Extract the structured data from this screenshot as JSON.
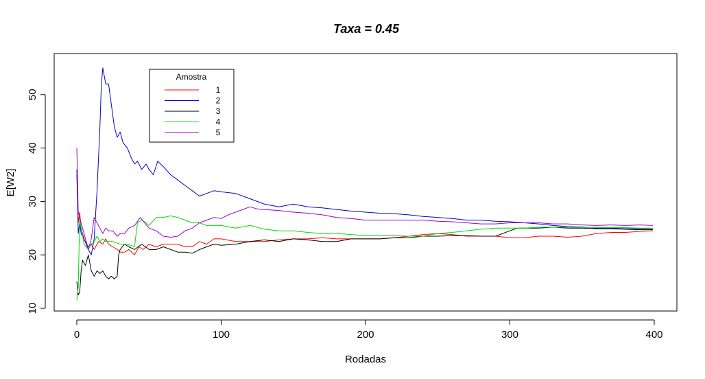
{
  "chart_data": {
    "type": "line",
    "title": "Taxa = 0.45",
    "xlabel": "Rodadas",
    "ylabel": "E[W2]",
    "xlim": [
      0,
      400
    ],
    "ylim": [
      10,
      56
    ],
    "xticks": [
      0,
      100,
      200,
      300,
      400
    ],
    "yticks": [
      10,
      20,
      30,
      40,
      50
    ],
    "grid": false,
    "legend": {
      "title": "Amostra",
      "position": "top-left",
      "entries": [
        "1",
        "2",
        "3",
        "4",
        "5"
      ]
    },
    "series": [
      {
        "name": "1",
        "color": "#FF0000",
        "points": [
          [
            0,
            35
          ],
          [
            1,
            26
          ],
          [
            2,
            28
          ],
          [
            3,
            25
          ],
          [
            5,
            23
          ],
          [
            8,
            21.5
          ],
          [
            10,
            22
          ],
          [
            12,
            21
          ],
          [
            15,
            22.5
          ],
          [
            18,
            22
          ],
          [
            20,
            23
          ],
          [
            22,
            22
          ],
          [
            25,
            21.5
          ],
          [
            28,
            21
          ],
          [
            30,
            20.5
          ],
          [
            33,
            20.5
          ],
          [
            36,
            21
          ],
          [
            40,
            20
          ],
          [
            43,
            21.5
          ],
          [
            46,
            21
          ],
          [
            50,
            22
          ],
          [
            55,
            21.5
          ],
          [
            60,
            22
          ],
          [
            65,
            22
          ],
          [
            70,
            22
          ],
          [
            75,
            21.5
          ],
          [
            80,
            21.5
          ],
          [
            85,
            22.5
          ],
          [
            90,
            22
          ],
          [
            95,
            23
          ],
          [
            100,
            23
          ],
          [
            110,
            22.5
          ],
          [
            120,
            22.5
          ],
          [
            130,
            22.5
          ],
          [
            140,
            22.8
          ],
          [
            150,
            23
          ],
          [
            160,
            23
          ],
          [
            170,
            23.2
          ],
          [
            180,
            23
          ],
          [
            190,
            23
          ],
          [
            200,
            23
          ],
          [
            210,
            23
          ],
          [
            220,
            23.2
          ],
          [
            230,
            23.5
          ],
          [
            240,
            23.8
          ],
          [
            250,
            24
          ],
          [
            260,
            23.8
          ],
          [
            270,
            23.5
          ],
          [
            280,
            23.5
          ],
          [
            290,
            23.5
          ],
          [
            300,
            23.2
          ],
          [
            310,
            23.2
          ],
          [
            320,
            23.5
          ],
          [
            330,
            23.5
          ],
          [
            340,
            23.3
          ],
          [
            350,
            23.5
          ],
          [
            360,
            24
          ],
          [
            370,
            24.2
          ],
          [
            380,
            24.2
          ],
          [
            390,
            24.4
          ],
          [
            399,
            24.5
          ]
        ]
      },
      {
        "name": "2",
        "color": "#0000CC",
        "points": [
          [
            0,
            36
          ],
          [
            1,
            24
          ],
          [
            2,
            26
          ],
          [
            3,
            24
          ],
          [
            5,
            23
          ],
          [
            8,
            21
          ],
          [
            10,
            20
          ],
          [
            12,
            23
          ],
          [
            14,
            32
          ],
          [
            16,
            44
          ],
          [
            17,
            52
          ],
          [
            18,
            55
          ],
          [
            20,
            52
          ],
          [
            22,
            52
          ],
          [
            24,
            48
          ],
          [
            26,
            44
          ],
          [
            28,
            42
          ],
          [
            30,
            43
          ],
          [
            32,
            41
          ],
          [
            35,
            40
          ],
          [
            38,
            38
          ],
          [
            40,
            37
          ],
          [
            42,
            37.5
          ],
          [
            45,
            36
          ],
          [
            48,
            37
          ],
          [
            50,
            36
          ],
          [
            53,
            35
          ],
          [
            56,
            37.5
          ],
          [
            60,
            36.5
          ],
          [
            65,
            35
          ],
          [
            70,
            34
          ],
          [
            75,
            33
          ],
          [
            80,
            32
          ],
          [
            85,
            31
          ],
          [
            90,
            31.5
          ],
          [
            95,
            32
          ],
          [
            100,
            31.8
          ],
          [
            110,
            31.5
          ],
          [
            120,
            30.5
          ],
          [
            130,
            29.5
          ],
          [
            140,
            29
          ],
          [
            150,
            29.5
          ],
          [
            160,
            29
          ],
          [
            170,
            28.8
          ],
          [
            180,
            28.5
          ],
          [
            190,
            28.2
          ],
          [
            200,
            28
          ],
          [
            210,
            27.8
          ],
          [
            220,
            27.7
          ],
          [
            230,
            27.5
          ],
          [
            240,
            27.2
          ],
          [
            250,
            27
          ],
          [
            260,
            26.8
          ],
          [
            270,
            26.5
          ],
          [
            280,
            26.5
          ],
          [
            290,
            26.3
          ],
          [
            300,
            26.2
          ],
          [
            310,
            26
          ],
          [
            320,
            25.8
          ],
          [
            330,
            25.5
          ],
          [
            340,
            25.3
          ],
          [
            350,
            25.2
          ],
          [
            360,
            25
          ],
          [
            370,
            25
          ],
          [
            380,
            24.9
          ],
          [
            390,
            24.9
          ],
          [
            399,
            24.8
          ]
        ]
      },
      {
        "name": "3",
        "color": "#000000",
        "points": [
          [
            0,
            15
          ],
          [
            1,
            12.5
          ],
          [
            2,
            13
          ],
          [
            3,
            17
          ],
          [
            4,
            19
          ],
          [
            6,
            18
          ],
          [
            8,
            20
          ],
          [
            10,
            17
          ],
          [
            12,
            16
          ],
          [
            14,
            17
          ],
          [
            16,
            16.5
          ],
          [
            18,
            17
          ],
          [
            20,
            16
          ],
          [
            22,
            15.5
          ],
          [
            24,
            16
          ],
          [
            26,
            15.5
          ],
          [
            28,
            16
          ],
          [
            29,
            20
          ],
          [
            30,
            21
          ],
          [
            33,
            22
          ],
          [
            36,
            21.5
          ],
          [
            40,
            21
          ],
          [
            45,
            22
          ],
          [
            50,
            21
          ],
          [
            55,
            21
          ],
          [
            60,
            21.5
          ],
          [
            65,
            21
          ],
          [
            70,
            20.5
          ],
          [
            75,
            20.5
          ],
          [
            80,
            20.3
          ],
          [
            85,
            21
          ],
          [
            90,
            21.5
          ],
          [
            95,
            22
          ],
          [
            100,
            21.8
          ],
          [
            110,
            22
          ],
          [
            120,
            22.5
          ],
          [
            130,
            22.8
          ],
          [
            140,
            22.5
          ],
          [
            150,
            23
          ],
          [
            160,
            22.8
          ],
          [
            170,
            22.5
          ],
          [
            180,
            22.5
          ],
          [
            190,
            23
          ],
          [
            200,
            23
          ],
          [
            210,
            23
          ],
          [
            220,
            23.2
          ],
          [
            230,
            23.2
          ],
          [
            240,
            23.5
          ],
          [
            250,
            23.5
          ],
          [
            260,
            23.6
          ],
          [
            270,
            23.6
          ],
          [
            280,
            23.5
          ],
          [
            290,
            23.5
          ],
          [
            300,
            24.5
          ],
          [
            305,
            25
          ],
          [
            310,
            25
          ],
          [
            320,
            25
          ],
          [
            330,
            25.2
          ],
          [
            340,
            25
          ],
          [
            350,
            25
          ],
          [
            360,
            24.9
          ],
          [
            370,
            24.9
          ],
          [
            380,
            24.8
          ],
          [
            390,
            24.7
          ],
          [
            399,
            24.7
          ]
        ]
      },
      {
        "name": "4",
        "color": "#00DD00",
        "points": [
          [
            0,
            11.5
          ],
          [
            1,
            14
          ],
          [
            2,
            27
          ],
          [
            3,
            25
          ],
          [
            5,
            22
          ],
          [
            8,
            21
          ],
          [
            10,
            22
          ],
          [
            12,
            22.5
          ],
          [
            14,
            23.5
          ],
          [
            16,
            22.5
          ],
          [
            18,
            23
          ],
          [
            20,
            22.5
          ],
          [
            25,
            22.5
          ],
          [
            30,
            22
          ],
          [
            35,
            22
          ],
          [
            40,
            21.5
          ],
          [
            42,
            26
          ],
          [
            45,
            26.5
          ],
          [
            48,
            26
          ],
          [
            50,
            25.5
          ],
          [
            55,
            27
          ],
          [
            60,
            27
          ],
          [
            65,
            27.3
          ],
          [
            70,
            27
          ],
          [
            75,
            26.5
          ],
          [
            80,
            26
          ],
          [
            85,
            26
          ],
          [
            90,
            25.5
          ],
          [
            95,
            25.5
          ],
          [
            100,
            25.5
          ],
          [
            110,
            25
          ],
          [
            120,
            25.5
          ],
          [
            130,
            24.8
          ],
          [
            140,
            24.5
          ],
          [
            150,
            24.5
          ],
          [
            160,
            24.2
          ],
          [
            170,
            24
          ],
          [
            180,
            24
          ],
          [
            190,
            23.8
          ],
          [
            200,
            23.6
          ],
          [
            210,
            23.6
          ],
          [
            220,
            23.6
          ],
          [
            230,
            23.5
          ],
          [
            240,
            23.5
          ],
          [
            250,
            24
          ],
          [
            260,
            24.2
          ],
          [
            270,
            24.5
          ],
          [
            280,
            24.8
          ],
          [
            290,
            25
          ],
          [
            300,
            25
          ],
          [
            310,
            25
          ],
          [
            320,
            25.2
          ],
          [
            330,
            25.2
          ],
          [
            340,
            25.2
          ],
          [
            350,
            25.1
          ],
          [
            360,
            25.1
          ],
          [
            370,
            25.1
          ],
          [
            380,
            25.1
          ],
          [
            390,
            25
          ],
          [
            399,
            25
          ]
        ]
      },
      {
        "name": "5",
        "color": "#9900CC",
        "points": [
          [
            0,
            40
          ],
          [
            1,
            28
          ],
          [
            2,
            27
          ],
          [
            3,
            26
          ],
          [
            5,
            24
          ],
          [
            8,
            21
          ],
          [
            10,
            23
          ],
          [
            12,
            27
          ],
          [
            14,
            26
          ],
          [
            16,
            25
          ],
          [
            18,
            24
          ],
          [
            20,
            25
          ],
          [
            22,
            24.5
          ],
          [
            25,
            24.5
          ],
          [
            28,
            23.5
          ],
          [
            30,
            24
          ],
          [
            33,
            24
          ],
          [
            36,
            25
          ],
          [
            40,
            25.5
          ],
          [
            44,
            27
          ],
          [
            47,
            26
          ],
          [
            50,
            25
          ],
          [
            55,
            24.5
          ],
          [
            60,
            23.5
          ],
          [
            65,
            23.3
          ],
          [
            70,
            23.5
          ],
          [
            75,
            24.5
          ],
          [
            80,
            25
          ],
          [
            85,
            26
          ],
          [
            90,
            26.5
          ],
          [
            95,
            27
          ],
          [
            100,
            26.8
          ],
          [
            105,
            27.5
          ],
          [
            110,
            28
          ],
          [
            115,
            28.5
          ],
          [
            120,
            29
          ],
          [
            125,
            28.6
          ],
          [
            130,
            28.5
          ],
          [
            140,
            28.3
          ],
          [
            150,
            28
          ],
          [
            160,
            27.8
          ],
          [
            170,
            27.5
          ],
          [
            180,
            27
          ],
          [
            190,
            26.8
          ],
          [
            200,
            26.5
          ],
          [
            210,
            26.5
          ],
          [
            220,
            26.5
          ],
          [
            230,
            26.5
          ],
          [
            240,
            26.5
          ],
          [
            250,
            26.3
          ],
          [
            260,
            26.2
          ],
          [
            270,
            26
          ],
          [
            280,
            25.8
          ],
          [
            290,
            25.8
          ],
          [
            300,
            26
          ],
          [
            310,
            26
          ],
          [
            320,
            26
          ],
          [
            330,
            25.8
          ],
          [
            340,
            25.8
          ],
          [
            350,
            25.6
          ],
          [
            360,
            25.5
          ],
          [
            370,
            25.6
          ],
          [
            380,
            25.5
          ],
          [
            390,
            25.6
          ],
          [
            399,
            25.5
          ]
        ]
      }
    ]
  }
}
